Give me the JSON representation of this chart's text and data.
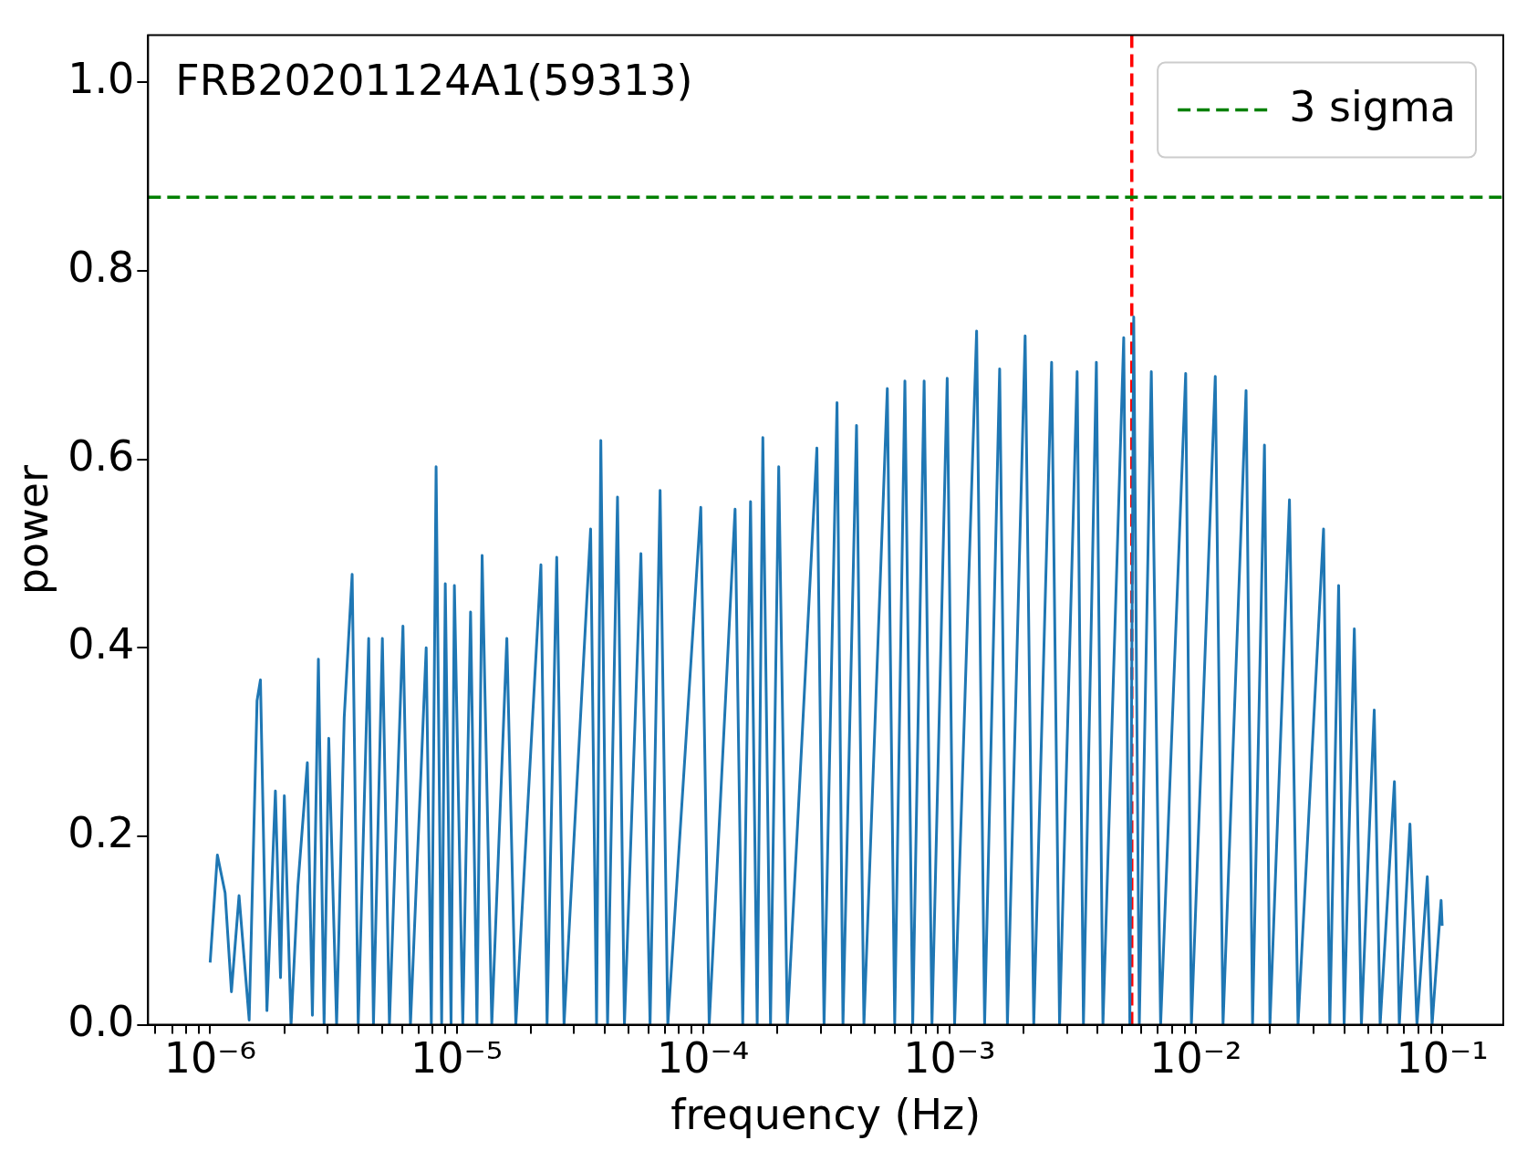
{
  "chart_data": {
    "type": "line",
    "title": "FRB20201124A1(59313)",
    "xlabel": "frequency (Hz)",
    "ylabel": "power",
    "log": "x",
    "grid": false,
    "legend": "top right",
    "marker": "none",
    "line_style": "solid",
    "xlim": [
      5.6e-07,
      0.177
    ],
    "ylim": [
      0,
      1.05
    ],
    "xticks": [
      {
        "value": 6e-07,
        "label": null
      },
      {
        "value": 7e-07,
        "label": null
      },
      {
        "value": 8e-07,
        "label": null
      },
      {
        "value": 9e-07,
        "label": null
      },
      {
        "value": 1e-06,
        "label": "10⁻⁶"
      },
      {
        "value": 2e-06,
        "label": null
      },
      {
        "value": 3e-06,
        "label": null
      },
      {
        "value": 4e-06,
        "label": null
      },
      {
        "value": 5e-06,
        "label": null
      },
      {
        "value": 6e-06,
        "label": null
      },
      {
        "value": 7e-06,
        "label": null
      },
      {
        "value": 8e-06,
        "label": null
      },
      {
        "value": 9e-06,
        "label": null
      },
      {
        "value": 1e-05,
        "label": "10⁻⁵"
      },
      {
        "value": 2e-05,
        "label": null
      },
      {
        "value": 3e-05,
        "label": null
      },
      {
        "value": 4e-05,
        "label": null
      },
      {
        "value": 5e-05,
        "label": null
      },
      {
        "value": 6e-05,
        "label": null
      },
      {
        "value": 7e-05,
        "label": null
      },
      {
        "value": 8e-05,
        "label": null
      },
      {
        "value": 9e-05,
        "label": null
      },
      {
        "value": 0.0001,
        "label": "10⁻⁴"
      },
      {
        "value": 0.0002,
        "label": null
      },
      {
        "value": 0.0003,
        "label": null
      },
      {
        "value": 0.0004,
        "label": null
      },
      {
        "value": 0.0005,
        "label": null
      },
      {
        "value": 0.0006,
        "label": null
      },
      {
        "value": 0.0007,
        "label": null
      },
      {
        "value": 0.0008,
        "label": null
      },
      {
        "value": 0.0009,
        "label": null
      },
      {
        "value": 0.001,
        "label": "10⁻³"
      },
      {
        "value": 0.002,
        "label": null
      },
      {
        "value": 0.003,
        "label": null
      },
      {
        "value": 0.004,
        "label": null
      },
      {
        "value": 0.005,
        "label": null
      },
      {
        "value": 0.006,
        "label": null
      },
      {
        "value": 0.007,
        "label": null
      },
      {
        "value": 0.008,
        "label": null
      },
      {
        "value": 0.009,
        "label": null
      },
      {
        "value": 0.01,
        "label": "10⁻²"
      },
      {
        "value": 0.02,
        "label": null
      },
      {
        "value": 0.03,
        "label": null
      },
      {
        "value": 0.04,
        "label": null
      },
      {
        "value": 0.05,
        "label": null
      },
      {
        "value": 0.06,
        "label": null
      },
      {
        "value": 0.07,
        "label": null
      },
      {
        "value": 0.08,
        "label": null
      },
      {
        "value": 0.09,
        "label": null
      },
      {
        "value": 0.1,
        "label": "10⁻¹"
      }
    ],
    "yticks": [
      {
        "value": 0,
        "label": "0.0"
      },
      0.2,
      0.4,
      0.6,
      0.8,
      {
        "value": 1,
        "label": "1.0"
      }
    ],
    "ref_lines": [
      {
        "axis": "y",
        "value": 0.878,
        "label": "3 sigma",
        "color": "#008000",
        "line_style": "dashed"
      },
      {
        "axis": "x",
        "value": 0.0055,
        "label": null,
        "color": "#ff0000",
        "line_style": "dashed"
      }
    ],
    "series": [
      {
        "color": "#1f77b4",
        "x": [
          1e-06,
          1.07e-06,
          1.15e-06,
          1.22e-06,
          1.31e-06,
          1.44e-06,
          1.55e-06,
          1.6e-06,
          1.7e-06,
          1.84e-06,
          1.93e-06,
          2e-06,
          2.13e-06,
          2.27e-06,
          2.48e-06,
          2.6e-06,
          2.75e-06,
          2.9e-06,
          3.03e-06,
          3.26e-06,
          3.5e-06,
          3.77e-06,
          3.99e-06,
          4.4e-06,
          4.6e-06,
          5e-06,
          5.34e-06,
          6.06e-06,
          6.5e-06,
          7.53e-06,
          7.9e-06,
          8.26e-06,
          8.7e-06,
          9e-06,
          9.5e-06,
          9.8e-06,
          1.06e-05,
          1.14e-05,
          1.21e-05,
          1.27e-05,
          1.39e-05,
          1.6e-05,
          1.74e-05,
          2.2e-05,
          2.33e-05,
          2.55e-05,
          2.73e-05,
          3.5e-05,
          3.7e-05,
          3.85e-05,
          4.1e-05,
          4.5e-05,
          4.8e-05,
          5.6e-05,
          6.1e-05,
          6.7e-05,
          7.2e-05,
          9.8e-05,
          0.000106,
          0.000135,
          0.000145,
          0.000156,
          0.000166,
          0.000175,
          0.000188,
          0.000203,
          0.00022,
          0.00029,
          0.00031,
          0.00035,
          0.00037,
          0.00042,
          0.00045,
          0.00056,
          0.0006,
          0.00066,
          0.00071,
          0.00079,
          0.00085,
          0.00098,
          0.00105,
          0.00129,
          0.00139,
          0.0016,
          0.00172,
          0.00203,
          0.0022,
          0.0026,
          0.0028,
          0.0033,
          0.0035,
          0.00395,
          0.0042,
          0.0051,
          0.0054,
          0.0056,
          0.0059,
          0.0066,
          0.0072,
          0.0091,
          0.0096,
          0.012,
          0.0129,
          0.016,
          0.017,
          0.019,
          0.02,
          0.024,
          0.026,
          0.033,
          0.035,
          0.038,
          0.04,
          0.044,
          0.047,
          0.053,
          0.056,
          0.064,
          0.067,
          0.074,
          0.079,
          0.087,
          0.091,
          0.099,
          0.1
        ],
        "values": [
          0.066,
          0.18,
          0.14,
          0.035,
          0.137,
          0.005,
          0.344,
          0.366,
          0.015,
          0.248,
          0.05,
          0.243,
          0,
          0.147,
          0.278,
          0.01,
          0.388,
          0,
          0.304,
          0,
          0.326,
          0.478,
          0,
          0.41,
          0,
          0.41,
          0,
          0.423,
          0,
          0.4,
          0,
          0.592,
          0,
          0.468,
          0,
          0.466,
          0,
          0.438,
          0,
          0.498,
          0,
          0.41,
          0,
          0.488,
          0,
          0.496,
          0,
          0.526,
          0,
          0.62,
          0,
          0.56,
          0,
          0.5,
          0,
          0.567,
          0,
          0.549,
          0,
          0.547,
          0,
          0.555,
          0,
          0.623,
          0,
          0.592,
          0,
          0.612,
          0,
          0.66,
          0,
          0.636,
          0,
          0.675,
          0,
          0.683,
          0,
          0.683,
          0,
          0.686,
          0,
          0.736,
          0,
          0.696,
          0,
          0.731,
          0,
          0.703,
          0,
          0.693,
          0,
          0.703,
          0,
          0.729,
          0,
          0.751,
          0,
          0.693,
          0,
          0.691,
          0,
          0.688,
          0,
          0.673,
          0,
          0.615,
          0,
          0.557,
          0,
          0.526,
          0,
          0.466,
          0,
          0.42,
          0,
          0.334,
          0,
          0.258,
          0,
          0.213,
          0,
          0.157,
          0,
          0.132,
          0.105
        ]
      }
    ]
  }
}
